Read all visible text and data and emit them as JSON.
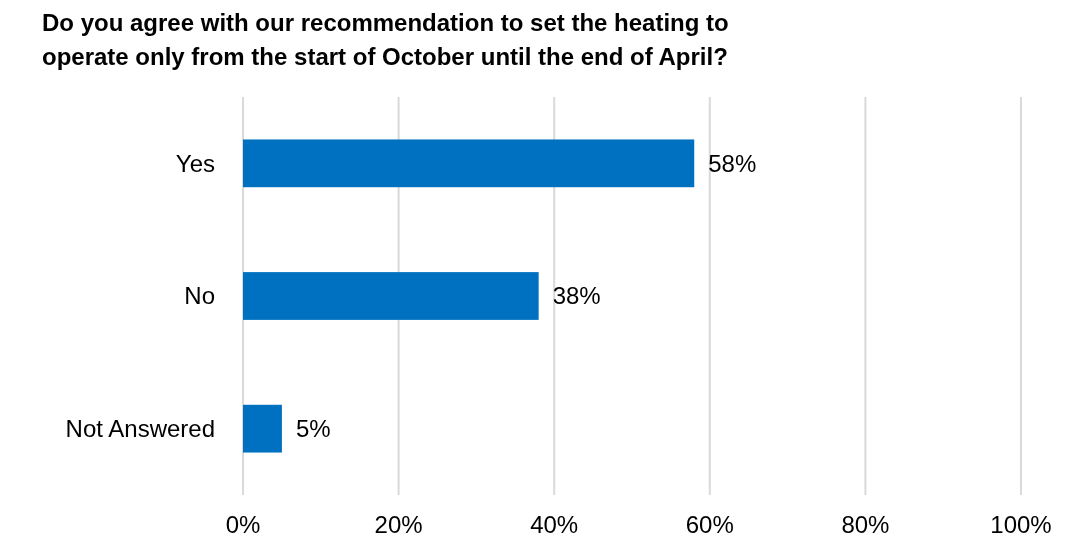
{
  "chart_data": {
    "type": "bar",
    "orientation": "horizontal",
    "title": "Do you agree with our recommendation to set the heating to operate only from the start of October until the end of April?",
    "categories": [
      "Yes",
      "No",
      "Not Answered"
    ],
    "values": [
      58,
      38,
      5
    ],
    "value_labels": [
      "58%",
      "38%",
      "5%"
    ],
    "color": "#0070c0",
    "xlim": [
      0,
      100
    ],
    "xticks": [
      {
        "value": 0,
        "label": "0%"
      },
      {
        "value": 20,
        "label": "20%"
      },
      {
        "value": 40,
        "label": "40%"
      },
      {
        "value": 60,
        "label": "60%"
      },
      {
        "value": 80,
        "label": "80%"
      },
      {
        "value": 100,
        "label": "100%"
      }
    ],
    "grid": "x"
  }
}
